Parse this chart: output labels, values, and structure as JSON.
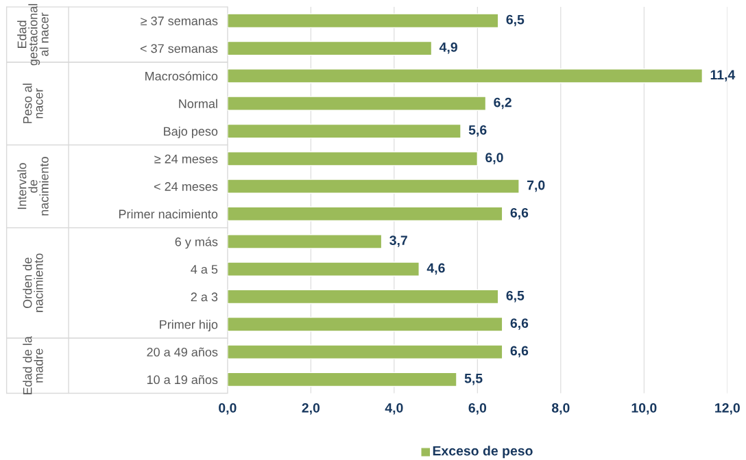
{
  "chart_data": {
    "type": "bar",
    "orientation": "horizontal",
    "categories": [
      "≥ 37 semanas",
      "< 37 semanas",
      "Macrosómico",
      "Normal",
      "Bajo peso",
      "≥ 24 meses",
      "< 24 meses",
      "Primer nacimiento",
      "6 y más",
      "4 a 5",
      "2 a 3",
      "Primer hijo",
      "20 a 49 años",
      "10 a 19 años"
    ],
    "series": [
      {
        "name": "Exceso de peso",
        "color": "#9bbb59",
        "values": [
          6.5,
          4.9,
          11.4,
          6.2,
          5.6,
          6.0,
          7.0,
          6.6,
          3.7,
          4.6,
          6.5,
          6.6,
          6.6,
          5.5
        ],
        "value_labels": [
          "6,5",
          "4,9",
          "11,4",
          "6,2",
          "5,6",
          "6,0",
          "7,0",
          "6,6",
          "3,7",
          "4,6",
          "6,5",
          "6,6",
          "6,6",
          "5,5"
        ]
      }
    ],
    "xlim": [
      0,
      12
    ],
    "xticks": [
      {
        "value": 0,
        "label": "0,0"
      },
      {
        "value": 2,
        "label": "2,0"
      },
      {
        "value": 4,
        "label": "4,0"
      },
      {
        "value": 6,
        "label": "6,0"
      },
      {
        "value": 8,
        "label": "8,0"
      },
      {
        "value": 10,
        "label": "10,0"
      },
      {
        "value": 12,
        "label": "12,0"
      }
    ],
    "grid": "x",
    "legend": "bottom",
    "annotations": [
      "Edad gestacional al nacer",
      "Peso al nacer",
      "Intervalo de nacimiento",
      "Orden de nacimiento",
      "Edad de la madre"
    ]
  }
}
